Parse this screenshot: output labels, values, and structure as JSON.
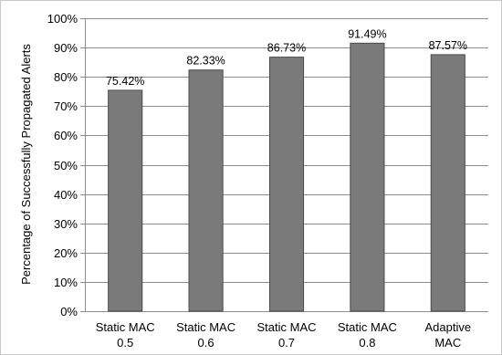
{
  "chart_data": {
    "type": "bar",
    "title": "",
    "xlabel": "",
    "ylabel": "Percentage of Successfully Propagated Alerts",
    "categories": [
      [
        "Static MAC",
        "0.5"
      ],
      [
        "Static MAC",
        "0.6"
      ],
      [
        "Static MAC",
        "0.7"
      ],
      [
        "Static MAC",
        "0.8"
      ],
      [
        "Adaptive",
        "MAC"
      ]
    ],
    "values": [
      75.42,
      82.33,
      86.73,
      91.49,
      87.57
    ],
    "data_labels": [
      "75.42%",
      "82.33%",
      "86.73%",
      "91.49%",
      "87.57%"
    ],
    "ylim": [
      0,
      100
    ],
    "yticks": [
      0,
      10,
      20,
      30,
      40,
      50,
      60,
      70,
      80,
      90,
      100
    ],
    "ytick_labels": [
      "0%",
      "10%",
      "20%",
      "30%",
      "40%",
      "50%",
      "60%",
      "70%",
      "80%",
      "90%",
      "100%"
    ],
    "grid": true,
    "legend": "none",
    "colors": {
      "bar": "#7a7a7a",
      "bar_edge": "#4a4a4a",
      "grid": "#8c8c8c",
      "frame": "#c8c8c8"
    }
  }
}
